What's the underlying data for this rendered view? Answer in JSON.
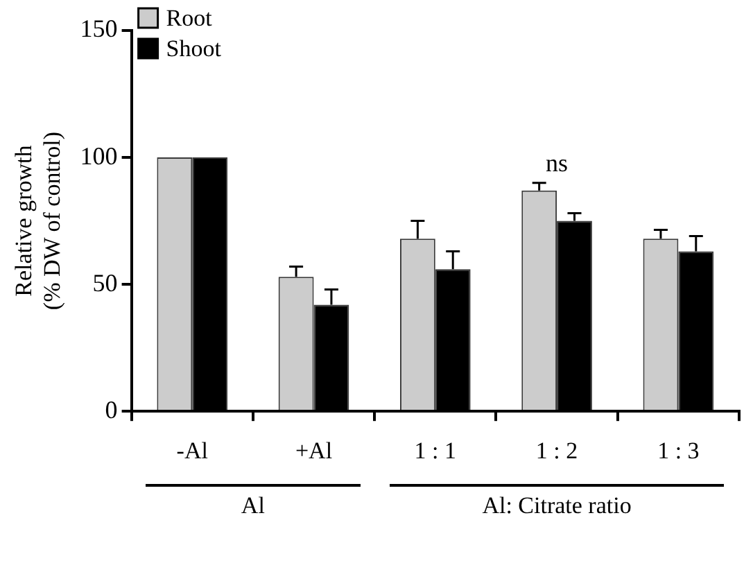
{
  "chart_data": {
    "type": "bar",
    "ylabel": "Relative growth\n(% DW of control)",
    "categories": [
      "-Al",
      "+Al",
      "1 : 1",
      "1 : 2",
      "1 : 3"
    ],
    "series": [
      {
        "name": "Root",
        "color": "#cccccc",
        "values": [
          100,
          53,
          68,
          87,
          68
        ],
        "errors": [
          null,
          4,
          7,
          3,
          3.5
        ]
      },
      {
        "name": "Shoot",
        "color": "#000000",
        "values": [
          100,
          42,
          56,
          75,
          63
        ],
        "errors": [
          null,
          6,
          7,
          3,
          6
        ]
      }
    ],
    "ylim": [
      0,
      150
    ],
    "yticks": [
      0,
      50,
      100,
      150
    ],
    "grid": false,
    "legend": "top left",
    "annotations": [
      "ns",
      "Al",
      "Al: Citrate ratio"
    ]
  }
}
